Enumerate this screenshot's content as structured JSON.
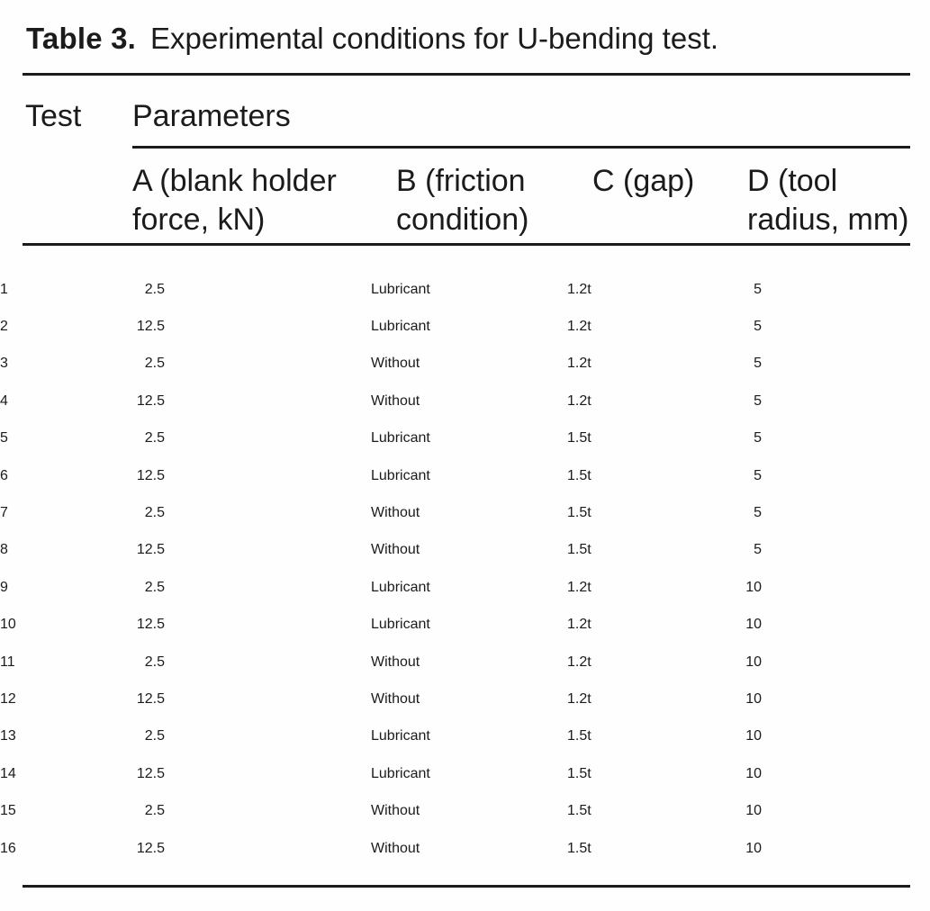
{
  "caption": {
    "label": "Table 3.",
    "text": "Experimental conditions for U-bending test."
  },
  "table": {
    "test_header": "Test",
    "group_header": "Parameters",
    "columns": [
      "A (blank holder\nforce, kN)",
      "B (friction\ncondition)",
      "C (gap)",
      "D (tool\nradius, mm)"
    ],
    "rows": [
      {
        "test": "1",
        "a": "2.5",
        "b": "Lubricant",
        "c": "1.2t",
        "d": "5"
      },
      {
        "test": "2",
        "a": "12.5",
        "b": "Lubricant",
        "c": "1.2t",
        "d": "5"
      },
      {
        "test": "3",
        "a": "2.5",
        "b": "Without",
        "c": "1.2t",
        "d": "5"
      },
      {
        "test": "4",
        "a": "12.5",
        "b": "Without",
        "c": "1.2t",
        "d": "5"
      },
      {
        "test": "5",
        "a": "2.5",
        "b": "Lubricant",
        "c": "1.5t",
        "d": "5"
      },
      {
        "test": "6",
        "a": "12.5",
        "b": "Lubricant",
        "c": "1.5t",
        "d": "5"
      },
      {
        "test": "7",
        "a": "2.5",
        "b": "Without",
        "c": "1.5t",
        "d": "5"
      },
      {
        "test": "8",
        "a": "12.5",
        "b": "Without",
        "c": "1.5t",
        "d": "5"
      },
      {
        "test": "9",
        "a": "2.5",
        "b": "Lubricant",
        "c": "1.2t",
        "d": "10"
      },
      {
        "test": "10",
        "a": "12.5",
        "b": "Lubricant",
        "c": "1.2t",
        "d": "10"
      },
      {
        "test": "11",
        "a": "2.5",
        "b": "Without",
        "c": "1.2t",
        "d": "10"
      },
      {
        "test": "12",
        "a": "12.5",
        "b": "Without",
        "c": "1.2t",
        "d": "10"
      },
      {
        "test": "13",
        "a": "2.5",
        "b": "Lubricant",
        "c": "1.5t",
        "d": "10"
      },
      {
        "test": "14",
        "a": "12.5",
        "b": "Lubricant",
        "c": "1.5t",
        "d": "10"
      },
      {
        "test": "15",
        "a": "2.5",
        "b": "Without",
        "c": "1.5t",
        "d": "10"
      },
      {
        "test": "16",
        "a": "12.5",
        "b": "Without",
        "c": "1.5t",
        "d": "10"
      }
    ]
  },
  "colors": {
    "text": "#1b1b1b",
    "rule": "#1b1b1b",
    "background": "#fefefe"
  }
}
